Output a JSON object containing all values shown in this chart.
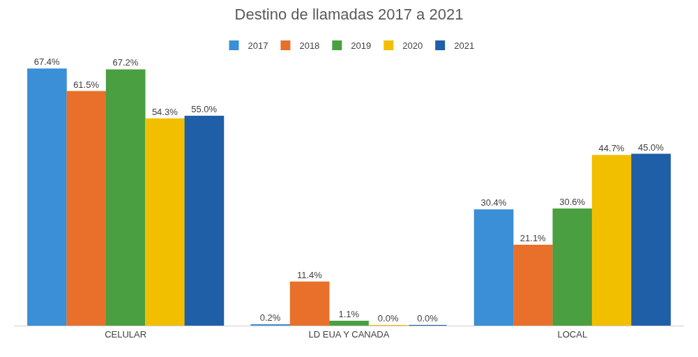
{
  "chart_data": {
    "type": "bar",
    "title": "Destino de llamadas 2017 a 2021",
    "categories": [
      "CELULAR",
      "LD EUA Y CANADA",
      "LOCAL"
    ],
    "series": [
      {
        "name": "2017",
        "color": "#3a8fd6",
        "values": [
          67.4,
          0.2,
          30.4
        ],
        "value_labels": [
          "67.4%",
          "0.2%",
          "30.4%"
        ]
      },
      {
        "name": "2018",
        "color": "#e8702a",
        "values": [
          61.5,
          11.4,
          21.1
        ],
        "value_labels": [
          "61.5%",
          "11.4%",
          "21.1%"
        ]
      },
      {
        "name": "2019",
        "color": "#4aa040",
        "values": [
          67.2,
          1.1,
          30.6
        ],
        "value_labels": [
          "67.2%",
          "1.1%",
          "30.6%"
        ]
      },
      {
        "name": "2020",
        "color": "#f2bf00",
        "values": [
          54.3,
          0.0,
          44.7
        ],
        "value_labels": [
          "54.3%",
          "0.0%",
          "44.7%"
        ]
      },
      {
        "name": "2021",
        "color": "#1f5fa8",
        "values": [
          55.0,
          0.0,
          45.0
        ],
        "value_labels": [
          "55.0%",
          "0.0%",
          "45.0%"
        ]
      }
    ],
    "legend": "top"
  }
}
